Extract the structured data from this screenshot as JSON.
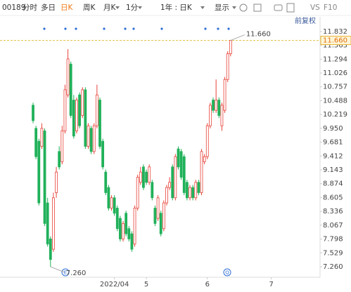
{
  "toolbar": {
    "code": "00189",
    "tabs": [
      "分时",
      "多日",
      "日K",
      "周K",
      "月K",
      "1分",
      "1年 : 日K",
      "显示"
    ],
    "right": [
      "VS",
      "F10"
    ]
  },
  "chart_data": {
    "type": "candlestick",
    "adjust_label": "前复权",
    "up_color": "#e8443a",
    "down_color": "#21b15a",
    "open": [
      10.4,
      9.95,
      9.7,
      9.6,
      9.9,
      8.5,
      7.8,
      7.6,
      8.7,
      9.5,
      9.3,
      9.9,
      10.6,
      11.2,
      10.5,
      9.9,
      10.6,
      10.2,
      10.7,
      9.6,
      9.95,
      9.5,
      10.0,
      10.5,
      9.7,
      9.1,
      8.8,
      8.4,
      8.6,
      8.4,
      8.2,
      7.8,
      8.3,
      8.0,
      7.9,
      7.7,
      8.4,
      8.9,
      9.2,
      9.1,
      8.9,
      8.9,
      8.4,
      8.2,
      8.3,
      8.0,
      8.5,
      8.8,
      9.2,
      8.6,
      9.55,
      9.5,
      9.4,
      8.9,
      8.6,
      8.8,
      8.6,
      8.9,
      8.7,
      9.3,
      9.4,
      10.0,
      10.5,
      10.3,
      10.5,
      10.0,
      10.3,
      10.9,
      11.4
    ],
    "high": [
      10.45,
      10.0,
      9.75,
      10.05,
      9.95,
      8.6,
      7.85,
      8.7,
      9.2,
      9.6,
      10.0,
      10.8,
      11.49,
      11.25,
      10.6,
      10.55,
      10.65,
      10.75,
      10.75,
      10.05,
      10.0,
      10.05,
      10.8,
      10.55,
      9.75,
      9.15,
      8.85,
      8.65,
      8.65,
      8.45,
      8.25,
      8.15,
      8.35,
      8.05,
      7.95,
      8.45,
      9.05,
      9.2,
      9.25,
      9.15,
      9.25,
      8.95,
      8.45,
      8.65,
      8.35,
      8.55,
      8.85,
      9.0,
      9.25,
      9.45,
      9.6,
      9.55,
      9.45,
      8.95,
      8.85,
      8.85,
      8.95,
      8.95,
      9.55,
      9.45,
      10.05,
      10.45,
      10.55,
      10.9,
      10.55,
      10.45,
      10.95,
      11.45,
      11.66
    ],
    "low": [
      10.05,
      9.35,
      8.45,
      9.55,
      8.05,
      7.65,
      7.26,
      7.55,
      8.6,
      9.15,
      9.25,
      9.85,
      10.55,
      10.15,
      9.75,
      9.85,
      9.95,
      10.15,
      9.55,
      9.55,
      9.45,
      9.45,
      9.95,
      9.55,
      9.15,
      8.65,
      8.35,
      8.35,
      8.25,
      7.95,
      7.75,
      7.75,
      7.85,
      7.75,
      7.55,
      7.65,
      8.35,
      8.85,
      8.75,
      8.85,
      8.85,
      8.55,
      8.05,
      8.15,
      7.85,
      7.95,
      8.45,
      8.75,
      8.55,
      8.55,
      9.15,
      8.95,
      8.65,
      8.55,
      8.55,
      8.55,
      8.55,
      8.65,
      8.65,
      9.25,
      9.35,
      9.95,
      10.25,
      10.25,
      10.15,
      9.9,
      10.25,
      10.85,
      11.35
    ],
    "close": [
      10.1,
      9.4,
      8.5,
      9.95,
      8.1,
      7.7,
      7.4,
      8.6,
      9.1,
      9.2,
      9.9,
      10.7,
      11.3,
      10.2,
      9.8,
      10.5,
      10.0,
      10.7,
      9.6,
      10.0,
      9.5,
      10.0,
      10.6,
      9.6,
      9.2,
      8.7,
      8.4,
      8.6,
      8.3,
      8.0,
      7.8,
      8.1,
      7.9,
      7.8,
      7.6,
      8.4,
      9.0,
      9.1,
      8.8,
      8.9,
      9.2,
      8.6,
      8.1,
      8.6,
      7.9,
      8.5,
      8.8,
      8.9,
      8.6,
      9.4,
      9.2,
      9.0,
      8.7,
      8.6,
      8.8,
      8.6,
      8.9,
      8.7,
      9.5,
      9.4,
      10.0,
      10.4,
      10.3,
      10.5,
      10.2,
      10.4,
      10.9,
      11.4,
      11.66
    ],
    "xlim": [
      -1.7,
      98.8
    ],
    "xticks": [
      {
        "value": 28,
        "label": "2022/04"
      },
      {
        "value": 39,
        "label": "5"
      },
      {
        "value": 60,
        "label": "6"
      },
      {
        "value": 82,
        "label": "7"
      }
    ],
    "ylim": [
      7.055,
      11.927
    ],
    "yticks": [
      {
        "value": 11.832,
        "label": "11.832"
      },
      {
        "value": 11.563,
        "label": "11.563"
      },
      {
        "value": 11.294,
        "label": "11.294"
      },
      {
        "value": 11.026,
        "label": "11.026"
      },
      {
        "value": 10.757,
        "label": "10.757"
      },
      {
        "value": 10.488,
        "label": "10.488"
      },
      {
        "value": 10.219,
        "label": "10.219"
      },
      {
        "value": 9.95,
        "label": "9.950"
      },
      {
        "value": 9.681,
        "label": "9.681"
      },
      {
        "value": 9.412,
        "label": "9.412"
      },
      {
        "value": 9.143,
        "label": "9.143"
      },
      {
        "value": 8.874,
        "label": "8.874"
      },
      {
        "value": 8.605,
        "label": "8.605"
      },
      {
        "value": 8.336,
        "label": "8.336"
      },
      {
        "value": 8.067,
        "label": "8.067"
      },
      {
        "value": 7.798,
        "label": "7.798"
      },
      {
        "value": 7.529,
        "label": "7.529"
      },
      {
        "value": 7.26,
        "label": "7.260"
      }
    ],
    "last_price": {
      "value": 11.66,
      "label": "11.660"
    },
    "max_label": {
      "value": 11.66,
      "label": "11.660"
    },
    "min_label": {
      "value": 7.26,
      "label": "7.260"
    },
    "events": [
      "E",
      "Q"
    ]
  }
}
